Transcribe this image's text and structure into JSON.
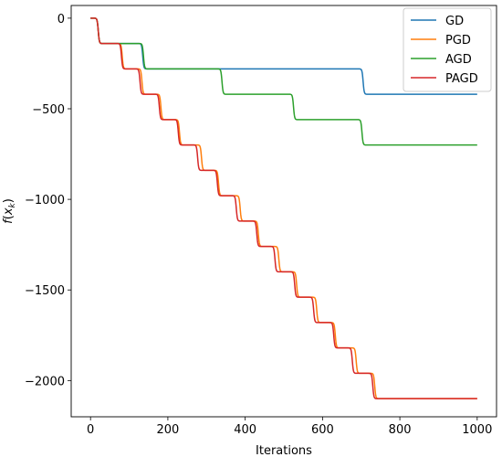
{
  "chart_data": {
    "type": "line",
    "xlabel": "Iterations",
    "ylabel": "f(x_k)",
    "xlim": [
      -50,
      1050
    ],
    "ylim": [
      -2200,
      70
    ],
    "xticks": [
      0,
      200,
      400,
      600,
      800,
      1000
    ],
    "yticks": [
      0,
      -500,
      -1000,
      -1500,
      -2000
    ],
    "xtick_labels": [
      "0",
      "200",
      "400",
      "600",
      "800",
      "1000"
    ],
    "ytick_labels": [
      "0",
      "−500",
      "−1000",
      "−1500",
      "−2000"
    ],
    "grid": false,
    "legend_position": "top-right",
    "step_size": -140,
    "series": [
      {
        "name": "GD",
        "color": "#1f77b4",
        "start": [
          0,
          0
        ],
        "end_x": 1000,
        "steps": [
          {
            "x": 20,
            "y": -140
          },
          {
            "x": 135,
            "y": -280
          },
          {
            "x": 705,
            "y": -420
          }
        ]
      },
      {
        "name": "PGD",
        "color": "#ff7f0e",
        "start": [
          0,
          0
        ],
        "end_x": 1000,
        "steps": [
          {
            "x": 20,
            "y": -140
          },
          {
            "x": 82,
            "y": -280
          },
          {
            "x": 133,
            "y": -420
          },
          {
            "x": 182,
            "y": -560
          },
          {
            "x": 230,
            "y": -700
          },
          {
            "x": 287,
            "y": -840
          },
          {
            "x": 331,
            "y": -980
          },
          {
            "x": 387,
            "y": -1120
          },
          {
            "x": 434,
            "y": -1260
          },
          {
            "x": 487,
            "y": -1400
          },
          {
            "x": 533,
            "y": -1540
          },
          {
            "x": 585,
            "y": -1680
          },
          {
            "x": 633,
            "y": -1820
          },
          {
            "x": 687,
            "y": -1960
          },
          {
            "x": 735,
            "y": -2100
          }
        ]
      },
      {
        "name": "AGD",
        "color": "#2ca02c",
        "start": [
          0,
          0
        ],
        "end_x": 1000,
        "steps": [
          {
            "x": 20,
            "y": -140
          },
          {
            "x": 137,
            "y": -280
          },
          {
            "x": 340,
            "y": -420
          },
          {
            "x": 525,
            "y": -560
          },
          {
            "x": 702,
            "y": -700
          }
        ]
      },
      {
        "name": "PAGD",
        "color": "#d62728",
        "start": [
          0,
          0
        ],
        "end_x": 1000,
        "steps": [
          {
            "x": 20,
            "y": -140
          },
          {
            "x": 80,
            "y": -280
          },
          {
            "x": 128,
            "y": -420
          },
          {
            "x": 178,
            "y": -560
          },
          {
            "x": 227,
            "y": -700
          },
          {
            "x": 277,
            "y": -840
          },
          {
            "x": 328,
            "y": -980
          },
          {
            "x": 377,
            "y": -1120
          },
          {
            "x": 430,
            "y": -1260
          },
          {
            "x": 477,
            "y": -1400
          },
          {
            "x": 528,
            "y": -1540
          },
          {
            "x": 577,
            "y": -1680
          },
          {
            "x": 629,
            "y": -1820
          },
          {
            "x": 677,
            "y": -1960
          },
          {
            "x": 730,
            "y": -2100
          }
        ]
      }
    ]
  }
}
